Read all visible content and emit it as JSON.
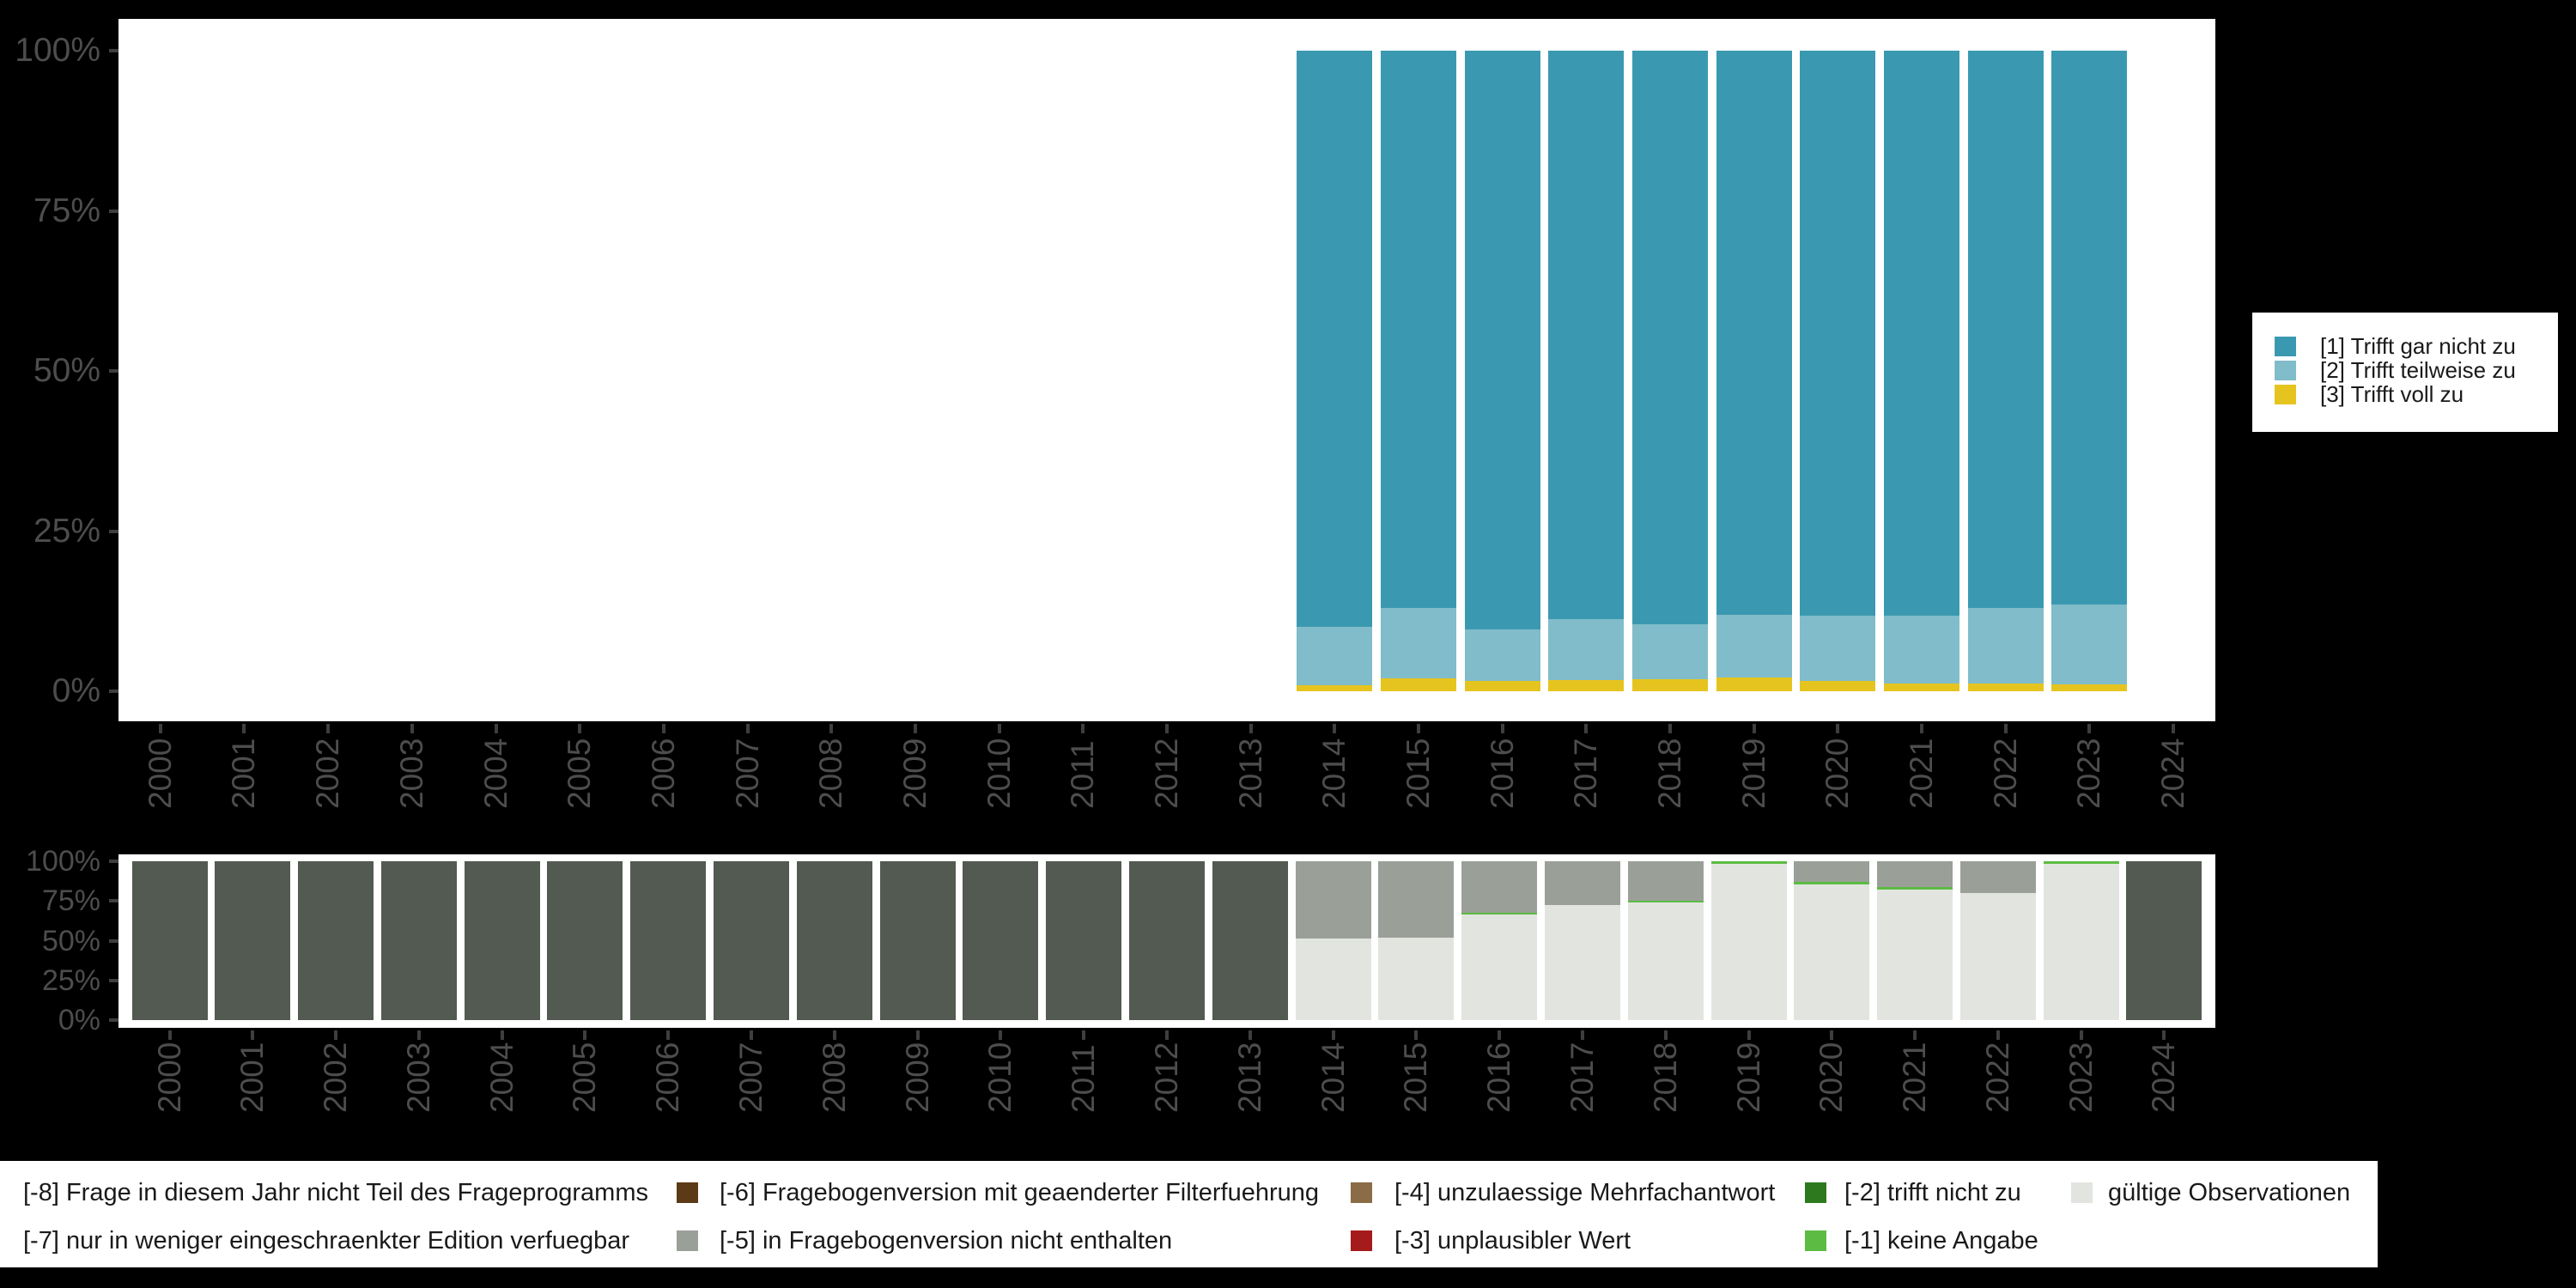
{
  "colors": {
    "background": "#000000",
    "plot_background": "#ffffff",
    "axis_label_gray": "#4d4d4d",
    "tick_gray": "#3e3e3e",
    "legend_text": "#1a1a1a"
  },
  "chart_data": [
    {
      "type": "bar",
      "stacked": true,
      "unit": "percent",
      "title": "",
      "xlabel": "",
      "ylabel": "",
      "ylim": [
        0,
        100
      ],
      "grid": false,
      "legend_position": "right",
      "y_tick_labels": [
        "0%",
        "25%",
        "50%",
        "75%",
        "100%"
      ],
      "categories": [
        2000,
        2001,
        2002,
        2003,
        2004,
        2005,
        2006,
        2007,
        2008,
        2009,
        2010,
        2011,
        2012,
        2013,
        2014,
        2015,
        2016,
        2017,
        2018,
        2019,
        2020,
        2021,
        2022,
        2023,
        2024
      ],
      "series": [
        {
          "name": "[3] Trifft voll zu",
          "color": "#E6C41F",
          "values": [
            0,
            0,
            0,
            0,
            0,
            0,
            0,
            0,
            0,
            0,
            0,
            0,
            0,
            0,
            1.0,
            2.0,
            1.6,
            1.7,
            1.9,
            2.2,
            1.6,
            1.2,
            1.2,
            1.1,
            0
          ]
        },
        {
          "name": "[2] Trifft teilweise zu",
          "color": "#80BCC9",
          "values": [
            0,
            0,
            0,
            0,
            0,
            0,
            0,
            0,
            0,
            0,
            0,
            0,
            0,
            0,
            9.1,
            11.0,
            8.1,
            9.5,
            8.5,
            9.7,
            10.2,
            10.6,
            11.8,
            12.5,
            0
          ]
        },
        {
          "name": "[1] Trifft gar nicht zu",
          "color": "#3A99B0",
          "values": [
            0,
            0,
            0,
            0,
            0,
            0,
            0,
            0,
            0,
            0,
            0,
            0,
            0,
            0,
            89.9,
            87.0,
            90.3,
            88.8,
            89.6,
            88.1,
            88.2,
            88.2,
            87.0,
            86.4,
            0
          ]
        }
      ],
      "legend": [
        {
          "label": "[1] Trifft gar nicht zu",
          "color": "#3A99B0"
        },
        {
          "label": "[2] Trifft teilweise zu",
          "color": "#80BCC9"
        },
        {
          "label": "[3] Trifft voll zu",
          "color": "#E6C41F"
        }
      ]
    },
    {
      "type": "bar",
      "stacked": true,
      "unit": "percent",
      "title": "",
      "xlabel": "",
      "ylabel": "",
      "ylim": [
        0,
        100
      ],
      "grid": false,
      "y_tick_labels": [
        "0%",
        "25%",
        "50%",
        "75%",
        "100%"
      ],
      "categories": [
        2000,
        2001,
        2002,
        2003,
        2004,
        2005,
        2006,
        2007,
        2008,
        2009,
        2010,
        2011,
        2012,
        2013,
        2014,
        2015,
        2016,
        2017,
        2018,
        2019,
        2020,
        2021,
        2022,
        2023,
        2024
      ],
      "series": [
        {
          "name": "gültige Observationen",
          "color": "#E2E5DF",
          "values": [
            0,
            0,
            0,
            0,
            0,
            0,
            0,
            0,
            0,
            0,
            0,
            0,
            0,
            0,
            51.3,
            52.0,
            66.3,
            72.7,
            73.8,
            98.5,
            85.6,
            82.4,
            79.9,
            98.6,
            0
          ]
        },
        {
          "name": "[-1] keine Angabe",
          "color": "#5CBB42",
          "values": [
            0,
            0,
            0,
            0,
            0,
            0,
            0,
            0,
            0,
            0,
            0,
            0,
            0,
            0,
            0,
            0,
            1.5,
            0,
            1.5,
            1.5,
            1.5,
            1.5,
            0,
            1.4,
            0
          ]
        },
        {
          "name": "[-5] in Fragebogenversion nicht enthalten",
          "color": "#9AA098",
          "values": [
            0,
            0,
            0,
            0,
            0,
            0,
            0,
            0,
            0,
            0,
            0,
            0,
            0,
            0,
            48.7,
            48.0,
            32.2,
            27.3,
            24.7,
            0,
            12.9,
            16.1,
            20.1,
            0,
            0
          ]
        },
        {
          "name": "[-8] Frage in diesem Jahr nicht Teil des Frageprogramms",
          "color": "#535A51",
          "values": [
            100,
            100,
            100,
            100,
            100,
            100,
            100,
            100,
            100,
            100,
            100,
            100,
            100,
            100,
            0,
            0,
            0,
            0,
            0,
            0,
            0,
            0,
            0,
            0,
            100
          ]
        }
      ]
    }
  ],
  "bottom_legend": {
    "rows": [
      [
        {
          "label": "[-8] Frage in diesem Jahr nicht Teil des Frageprogramms",
          "color": null
        },
        {
          "label": "[-6] Fragebogenversion mit geaenderter Filterfuehrung",
          "color": "#5C3A17"
        },
        {
          "label": "[-4] unzulaessige Mehrfachantwort",
          "color": "#8A6D46"
        },
        {
          "label": "[-2] trifft nicht zu",
          "color": "#2D7A1E"
        },
        {
          "label": "gültige Observationen",
          "color": "#E2E5DF"
        }
      ],
      [
        {
          "label": "[-7] nur in weniger eingeschraenkter Edition verfuegbar",
          "color": null
        },
        {
          "label": "[-5] in Fragebogenversion nicht enthalten",
          "color": "#9AA098"
        },
        {
          "label": "[-3] unplausibler Wert",
          "color": "#A51B1B"
        },
        {
          "label": "[-1] keine Angabe",
          "color": "#5CBB42"
        }
      ]
    ]
  }
}
